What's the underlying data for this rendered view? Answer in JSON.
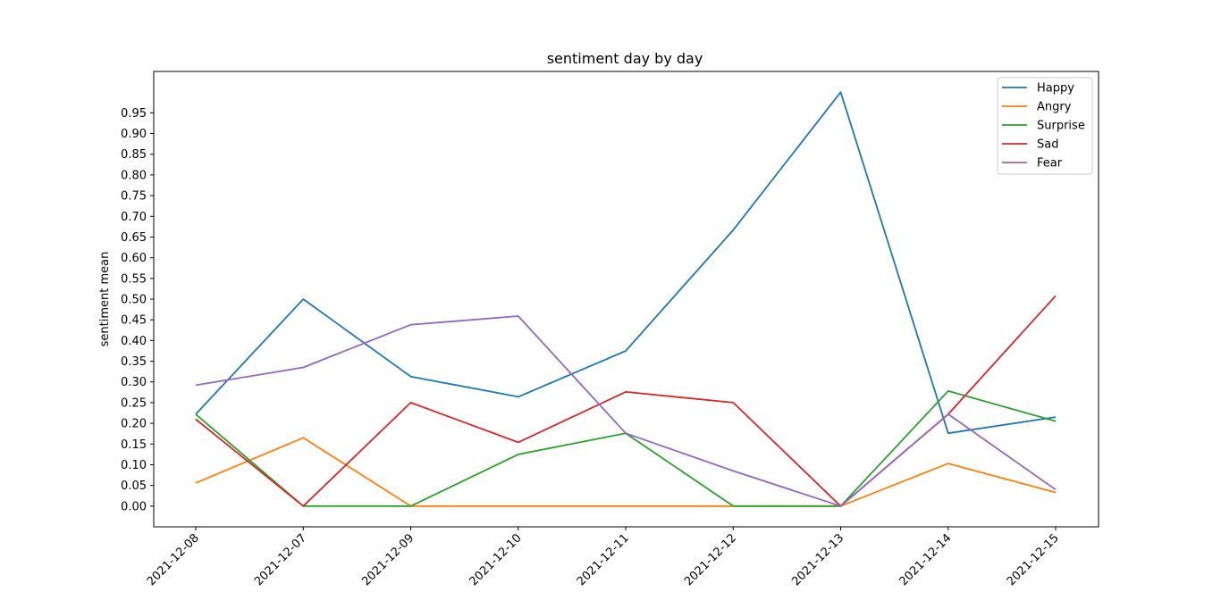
{
  "chart_data": {
    "type": "line",
    "title": "sentiment day by day",
    "xlabel": "",
    "ylabel": "sentiment mean",
    "categories": [
      "2021-12-08",
      "2021-12-07",
      "2021-12-09",
      "2021-12-10",
      "2021-12-11",
      "2021-12-12",
      "2021-12-13",
      "2021-12-14",
      "2021-12-15"
    ],
    "yticks": [
      "0.00",
      "0.05",
      "0.10",
      "0.15",
      "0.20",
      "0.25",
      "0.30",
      "0.35",
      "0.40",
      "0.45",
      "0.50",
      "0.55",
      "0.60",
      "0.65",
      "0.70",
      "0.75",
      "0.80",
      "0.85",
      "0.90",
      "0.95"
    ],
    "ylim": [
      -0.05,
      1.05
    ],
    "grid": false,
    "legend_position": "top-right",
    "series": [
      {
        "name": "Happy",
        "color": "#1f77b4",
        "values": [
          0.222,
          0.5,
          0.313,
          0.264,
          0.375,
          0.667,
          1.0,
          0.176,
          0.215
        ]
      },
      {
        "name": "Angry",
        "color": "#ff7f0e",
        "values": [
          0.056,
          0.165,
          0.0,
          0.0,
          0.0,
          0.0,
          0.0,
          0.103,
          0.033
        ]
      },
      {
        "name": "Surprise",
        "color": "#2ca02c",
        "values": [
          0.222,
          0.0,
          0.0,
          0.125,
          0.176,
          0.0,
          0.0,
          0.278,
          0.205
        ]
      },
      {
        "name": "Sad",
        "color": "#d62728",
        "values": [
          0.21,
          0.0,
          0.25,
          0.154,
          0.276,
          0.25,
          0.0,
          0.222,
          0.508
        ]
      },
      {
        "name": "Fear",
        "color": "#9467bd",
        "values": [
          0.292,
          0.335,
          0.438,
          0.459,
          0.176,
          0.085,
          0.0,
          0.222,
          0.04
        ]
      }
    ]
  }
}
